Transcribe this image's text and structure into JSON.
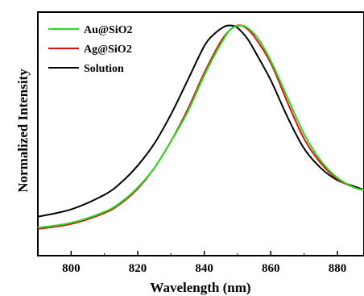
{
  "chart_data": {
    "type": "line",
    "title": "",
    "xlabel": "Wavelength (nm)",
    "ylabel": "Normalized Intensity",
    "xlim": [
      790,
      888
    ],
    "ylim": [
      0.0,
      1.0
    ],
    "x_ticks": [
      800,
      820,
      840,
      860,
      880
    ],
    "y_ticks_shown": false,
    "grid": false,
    "legend_position": "top-left",
    "series": [
      {
        "name": "Au@SiO2",
        "color": "#22dd22",
        "x": [
          790,
          800,
          810,
          815,
          820,
          825,
          830,
          835,
          840,
          845,
          848,
          851,
          853,
          856,
          860,
          865,
          870,
          875,
          880,
          885,
          888
        ],
        "y": [
          0.115,
          0.135,
          0.18,
          0.22,
          0.28,
          0.36,
          0.47,
          0.59,
          0.74,
          0.87,
          0.93,
          0.945,
          0.935,
          0.895,
          0.8,
          0.65,
          0.5,
          0.39,
          0.32,
          0.28,
          0.27
        ]
      },
      {
        "name": "Ag@SiO2",
        "color": "#dd1111",
        "x": [
          790,
          800,
          810,
          815,
          820,
          825,
          830,
          835,
          840,
          845,
          848,
          850,
          852,
          855,
          860,
          865,
          870,
          875,
          880,
          885,
          888
        ],
        "y": [
          0.11,
          0.13,
          0.175,
          0.215,
          0.275,
          0.36,
          0.47,
          0.6,
          0.75,
          0.88,
          0.93,
          0.945,
          0.94,
          0.9,
          0.79,
          0.63,
          0.48,
          0.38,
          0.315,
          0.28,
          0.27
        ]
      },
      {
        "name": "Solution",
        "color": "#000000",
        "x": [
          790,
          800,
          810,
          815,
          820,
          825,
          830,
          835,
          840,
          843,
          846,
          848,
          850,
          853,
          856,
          860,
          865,
          870,
          875,
          880,
          885,
          888
        ],
        "y": [
          0.16,
          0.19,
          0.25,
          0.3,
          0.37,
          0.46,
          0.58,
          0.72,
          0.86,
          0.91,
          0.94,
          0.945,
          0.935,
          0.89,
          0.82,
          0.72,
          0.57,
          0.44,
          0.36,
          0.31,
          0.285,
          0.27
        ]
      }
    ]
  }
}
